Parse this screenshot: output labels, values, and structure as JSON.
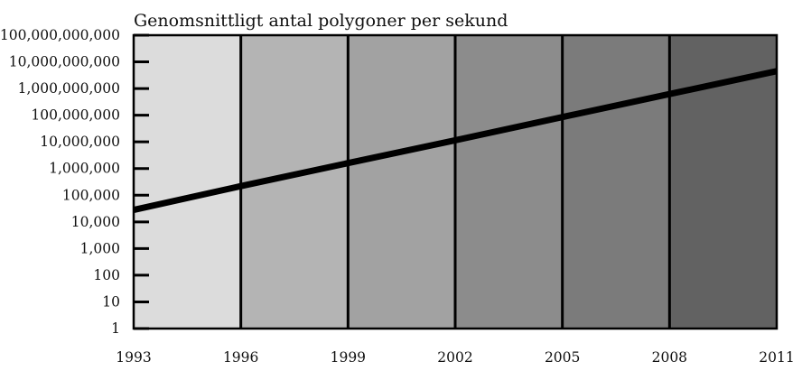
{
  "chart_data": {
    "type": "line",
    "title": "Genomsnittligt antal polygoner per sekund",
    "xlabel": "",
    "ylabel": "",
    "y_scale": "log",
    "xlim": [
      1993,
      2011
    ],
    "ylim": [
      1,
      100000000000
    ],
    "x_ticks": [
      "1993",
      "1996",
      "1999",
      "2002",
      "2005",
      "2008",
      "2011"
    ],
    "y_ticks": [
      "1",
      "10",
      "100",
      "1,000",
      "10,000",
      "100,000",
      "1,000,000",
      "10,000,000",
      "100,000,000",
      "1,000,000,000",
      "10,000,000,000",
      "100,000,000,000"
    ],
    "bands": [
      {
        "from": 1993,
        "to": 1996,
        "color": "#dcdcdc"
      },
      {
        "from": 1996,
        "to": 1999,
        "color": "#b4b4b4"
      },
      {
        "from": 1999,
        "to": 2002,
        "color": "#a2a2a2"
      },
      {
        "from": 2002,
        "to": 2005,
        "color": "#8c8c8c"
      },
      {
        "from": 2005,
        "to": 2008,
        "color": "#7b7b7b"
      },
      {
        "from": 2008,
        "to": 2011,
        "color": "#626262"
      }
    ],
    "series": [
      {
        "x": [
          1993,
          1996,
          1999,
          2002,
          2005,
          2008,
          2011
        ],
        "values": [
          28000,
          220000,
          1600000,
          11500000,
          85000000,
          620000000,
          4500000000
        ],
        "color": "#000000"
      }
    ],
    "grid": false
  }
}
